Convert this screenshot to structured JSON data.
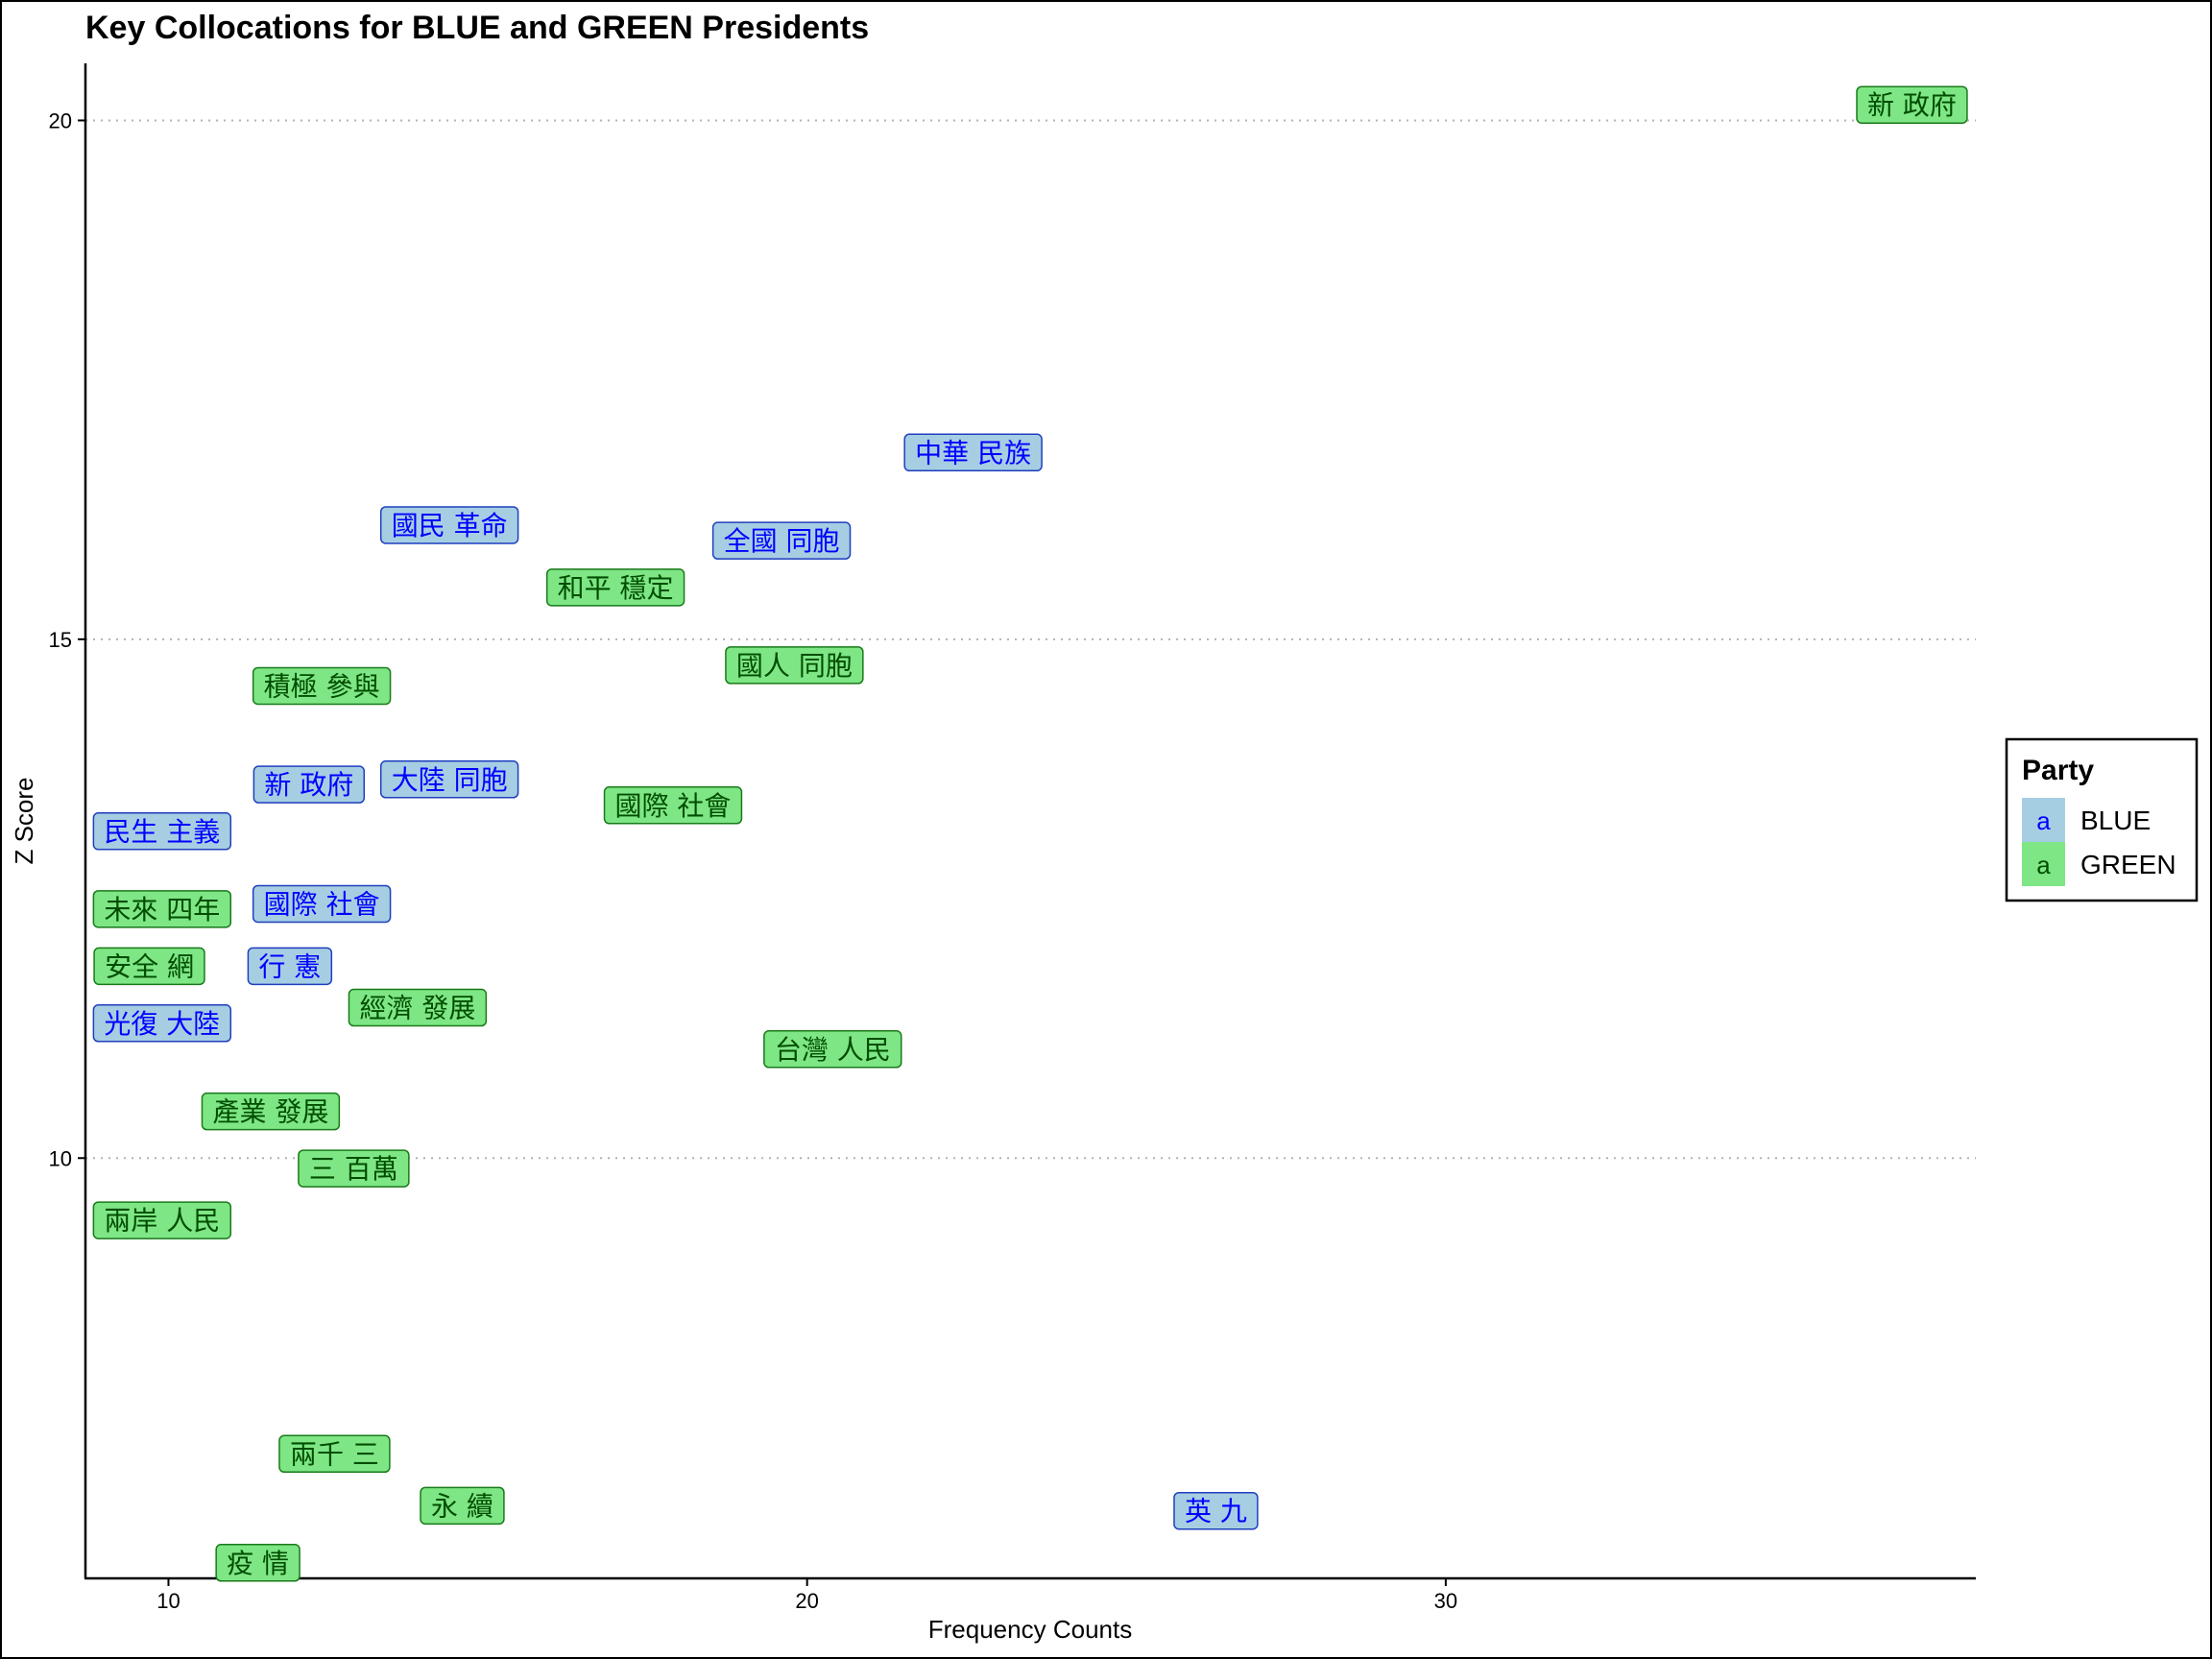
{
  "chart_data": {
    "type": "scatter",
    "title": "Key Collocations for BLUE and GREEN Presidents",
    "xlabel": "Frequency Counts",
    "ylabel": "Z Score",
    "xlim": [
      8.7,
      38.3
    ],
    "ylim": [
      5.95,
      20.55
    ],
    "xticks": [
      10,
      20,
      30
    ],
    "yticks": [
      10,
      15,
      20
    ],
    "grid": "horizontal-dotted",
    "legend": {
      "title": "Party",
      "position": "right",
      "key_glyph": "a",
      "entries": [
        {
          "name": "BLUE",
          "fill": "#a6cee3",
          "text": "#0000ff",
          "border": "#1f3fbf"
        },
        {
          "name": "GREEN",
          "fill": "#7ee685",
          "text": "#004d00",
          "border": "#1a7a1a"
        }
      ]
    },
    "series": [
      {
        "name": "BLUE",
        "points": [
          {
            "label": "中華 民族",
            "x": 22.6,
            "y": 16.8
          },
          {
            "label": "國民 革命",
            "x": 14.4,
            "y": 16.1
          },
          {
            "label": "全國 同胞",
            "x": 19.6,
            "y": 15.95
          },
          {
            "label": "新 政府",
            "x": 12.2,
            "y": 13.6
          },
          {
            "label": "大陸 同胞",
            "x": 14.4,
            "y": 13.65
          },
          {
            "label": "民生 主義",
            "x": 9.9,
            "y": 13.15
          },
          {
            "label": "國際 社會",
            "x": 12.4,
            "y": 12.45
          },
          {
            "label": "行 憲",
            "x": 11.9,
            "y": 11.85
          },
          {
            "label": "光復 大陸",
            "x": 9.9,
            "y": 11.3
          },
          {
            "label": "英 九",
            "x": 26.4,
            "y": 6.6
          }
        ]
      },
      {
        "name": "GREEN",
        "points": [
          {
            "label": "新 政府",
            "x": 37.3,
            "y": 20.15
          },
          {
            "label": "和平 穩定",
            "x": 17.0,
            "y": 15.5
          },
          {
            "label": "國人 同胞",
            "x": 19.8,
            "y": 14.75
          },
          {
            "label": "積極 參與",
            "x": 12.4,
            "y": 14.55
          },
          {
            "label": "國際 社會",
            "x": 17.9,
            "y": 13.4
          },
          {
            "label": "未來 四年",
            "x": 9.9,
            "y": 12.4
          },
          {
            "label": "安全 網",
            "x": 9.7,
            "y": 11.85
          },
          {
            "label": "經濟 發展",
            "x": 13.9,
            "y": 11.45
          },
          {
            "label": "台灣 人民",
            "x": 20.4,
            "y": 11.05
          },
          {
            "label": "產業 發展",
            "x": 11.6,
            "y": 10.45
          },
          {
            "label": "三 百萬",
            "x": 12.9,
            "y": 9.9
          },
          {
            "label": "兩岸 人民",
            "x": 9.9,
            "y": 9.4
          },
          {
            "label": "兩千 三",
            "x": 12.6,
            "y": 7.15
          },
          {
            "label": "永 續",
            "x": 14.6,
            "y": 6.65
          },
          {
            "label": "疫 情",
            "x": 11.4,
            "y": 6.1
          }
        ]
      }
    ]
  }
}
